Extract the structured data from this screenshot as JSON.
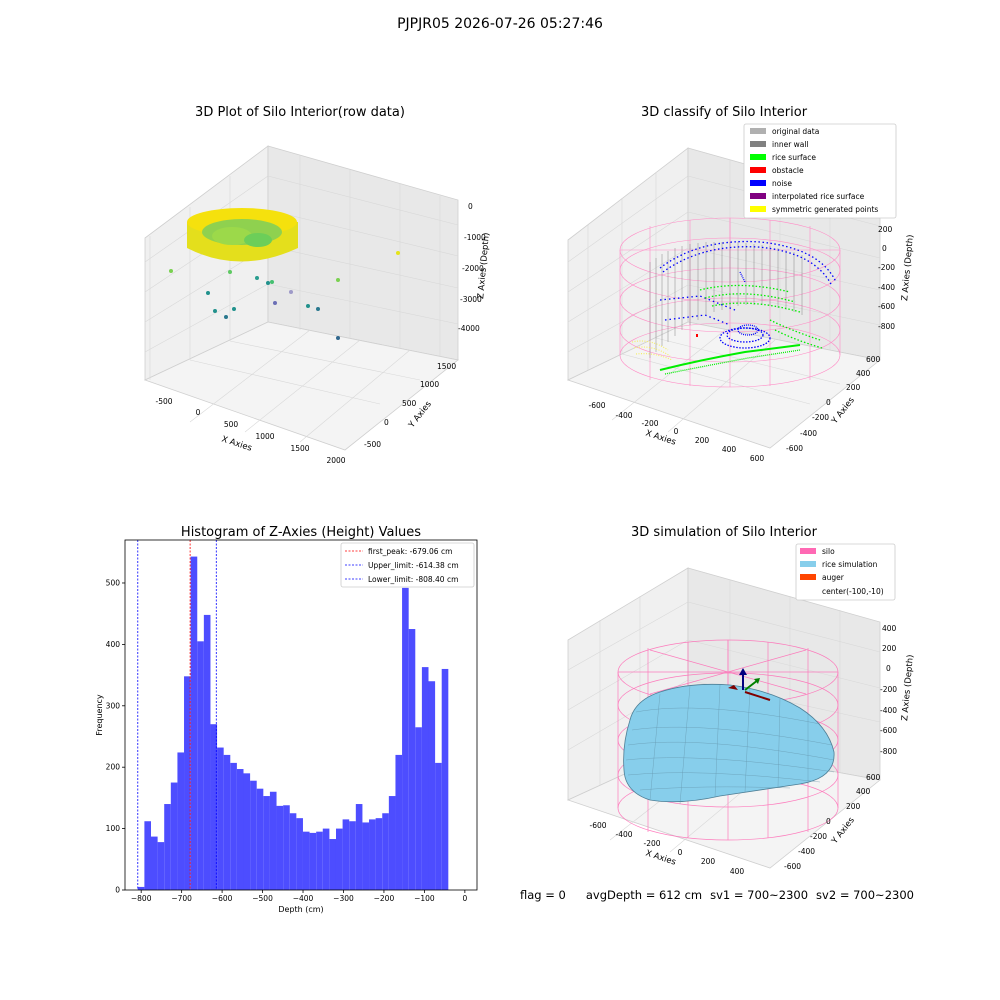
{
  "suptitle": "PJPJR05 2026-07-26 05:27:46",
  "footer": {
    "flag": "flag = 0",
    "avg": "avgDepth = 612 cm",
    "sv1": "sv1 = 700~2300",
    "sv2": "sv2 = 700~2300"
  },
  "chart_data": [
    {
      "type": "scatter",
      "title": "3D Plot of Silo Interior(row data)",
      "xlabel": "X Axies",
      "ylabel": "Y Axies",
      "zlabel": "Z Axies (Depth)",
      "xticks": [
        "-500",
        "0",
        "500",
        "1000",
        "1500",
        "2000"
      ],
      "yticks": [
        "-500",
        "0",
        "500",
        "1000",
        "1500"
      ],
      "zticks": [
        "0",
        "-1000",
        "-2000",
        "-3000",
        "-4000"
      ],
      "colors": {
        "ring": "#f5e10d",
        "inner": "#7ed957",
        "points": "#21918c"
      }
    },
    {
      "type": "scatter",
      "title": "3D classify of Silo Interior",
      "xlabel": "X Axies",
      "ylabel": "Y Axies",
      "zlabel": "Z Axies (Depth)",
      "xticks": [
        "-600",
        "-400",
        "-200",
        "0",
        "200",
        "400",
        "600"
      ],
      "yticks": [
        "-600",
        "-400",
        "-200",
        "0",
        "200",
        "400",
        "600"
      ],
      "zticks": [
        "200",
        "0",
        "-200",
        "-400",
        "-600",
        "-800"
      ],
      "legend": [
        {
          "label": "original data",
          "color": "#b0b0b0"
        },
        {
          "label": "inner wall",
          "color": "#808080"
        },
        {
          "label": "rice surface",
          "color": "#00ff00"
        },
        {
          "label": "obstacle",
          "color": "#ff0000"
        },
        {
          "label": "noise",
          "color": "#0000ff"
        },
        {
          "label": "interpolated rice surface",
          "color": "#800080"
        },
        {
          "label": "symmetric generated points",
          "color": "#ffff00"
        }
      ],
      "legend_placement": "top-right"
    },
    {
      "type": "bar",
      "title": "Histogram of Z-Axies (Height) Values",
      "xlabel": "Depth (cm)",
      "ylabel": "Frequency",
      "xlim": [
        -840,
        30
      ],
      "ylim": [
        0,
        570
      ],
      "xticks": [
        -800,
        -700,
        -600,
        -500,
        -400,
        -300,
        -200,
        -100,
        0
      ],
      "yticks": [
        0,
        100,
        200,
        300,
        400,
        500
      ],
      "bin_start": -808.4,
      "bin_width": 16.33,
      "values": [
        5,
        112,
        87,
        78,
        140,
        175,
        224,
        348,
        543,
        405,
        448,
        270,
        232,
        220,
        207,
        197,
        190,
        178,
        165,
        153,
        160,
        137,
        138,
        125,
        117,
        95,
        93,
        95,
        100,
        83,
        100,
        115,
        112,
        140,
        110,
        115,
        117,
        125,
        153,
        220,
        492,
        425,
        265,
        363,
        340,
        207,
        360
      ],
      "bar_color": "#4d4dff",
      "lines": [
        {
          "label": "first_peak: -679.06 cm",
          "x": -679.06,
          "color": "#ff0000"
        },
        {
          "label": "Upper_limit: -614.38 cm",
          "x": -614.38,
          "color": "#0000ff"
        },
        {
          "label": "Lower_limit: -808.40 cm",
          "x": -808.4,
          "color": "#0000ff"
        }
      ],
      "legend_placement": "top-right"
    },
    {
      "type": "area",
      "title": "3D simulation of Silo Interior",
      "xlabel": "X Axies",
      "ylabel": "Y Axies",
      "zlabel": "Z Axies (Depth)",
      "xticks": [
        "-600",
        "-400",
        "-200",
        "0",
        "200",
        "400"
      ],
      "yticks": [
        "-600",
        "-400",
        "-200",
        "0",
        "200",
        "400",
        "600"
      ],
      "zticks": [
        "400",
        "200",
        "0",
        "-200",
        "-400",
        "-600",
        "-800"
      ],
      "legend": [
        {
          "label": "silo",
          "color": "#ff69b4"
        },
        {
          "label": "rice simulation",
          "color": "#87ceeb"
        },
        {
          "label": "auger",
          "color": "#ff4500"
        },
        {
          "label": "center(-100,-10)",
          "color": ""
        }
      ],
      "legend_placement": "top-right"
    }
  ]
}
